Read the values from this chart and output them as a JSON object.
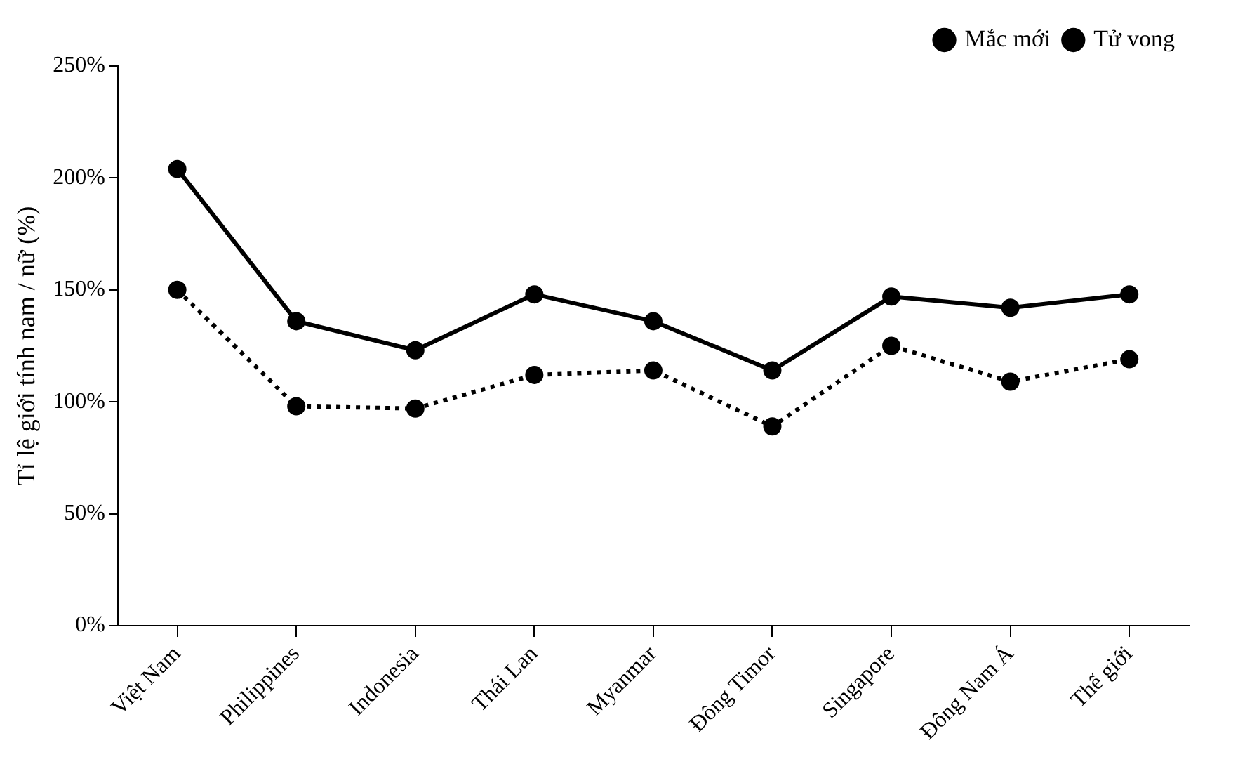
{
  "chart_data": {
    "type": "line",
    "ylabel": "Tỉ lệ giới tính nam / nữ (%)",
    "categories": [
      "Việt Nam",
      "Philippines",
      "Indonesia",
      "Thái Lan",
      "Myanmar",
      "Đông Timor",
      "Singapore",
      "Đông Nam Á",
      "Thế giới"
    ],
    "series": [
      {
        "name": "Mắc mới",
        "color": "#000000",
        "line_style": "dotted",
        "values": [
          150,
          98,
          97,
          112,
          114,
          89,
          125,
          109,
          119
        ]
      },
      {
        "name": "Tử vong",
        "color": "#000000",
        "line_style": "solid",
        "values": [
          204,
          136,
          123,
          148,
          136,
          114,
          147,
          142,
          148
        ]
      }
    ],
    "ylim": [
      0,
      250
    ],
    "yticks": [
      {
        "value": 0,
        "label": "0%"
      },
      {
        "value": 50,
        "label": "50%"
      },
      {
        "value": 100,
        "label": "100%"
      },
      {
        "value": 150,
        "label": "150%"
      },
      {
        "value": 200,
        "label": "200%"
      },
      {
        "value": 250,
        "label": "250%"
      }
    ],
    "grid": false,
    "legend": "top right",
    "marker": "circle"
  }
}
